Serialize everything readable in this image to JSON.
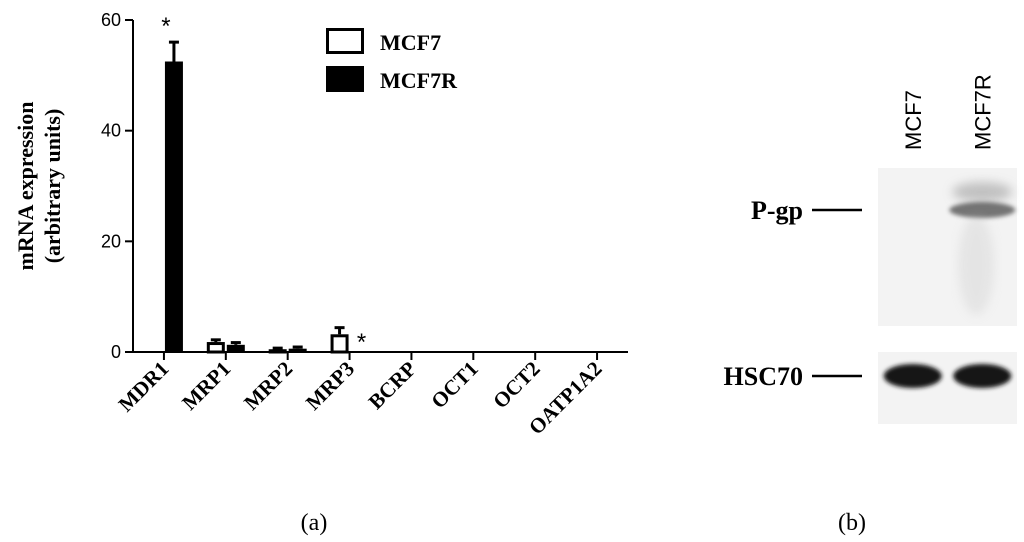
{
  "chart_data": [
    {
      "type": "bar",
      "panel_label": "(a)",
      "ylabel_lines": [
        "mRNA expression",
        "(arbitrary units)"
      ],
      "xlabel": "",
      "ylim": [
        0,
        60
      ],
      "yticks": [
        0,
        20,
        40,
        60
      ],
      "categories": [
        "MDR1",
        "MRP1",
        "MRP2",
        "MRP3",
        "BCRP",
        "OCT1",
        "OCT2",
        "OATP1A2"
      ],
      "series": [
        {
          "name": "MCF7",
          "style": "open",
          "values": [
            0,
            1.8,
            0.5,
            3.2,
            0,
            0,
            0,
            0
          ],
          "errors": [
            0,
            0.4,
            0.2,
            1.2,
            0,
            0,
            0,
            0
          ]
        },
        {
          "name": "MCF7R",
          "style": "filled",
          "values": [
            52.5,
            1.3,
            0.6,
            0,
            0,
            0,
            0,
            0
          ],
          "errors": [
            3.5,
            0.4,
            0.3,
            0,
            0,
            0,
            0,
            0
          ]
        }
      ],
      "annotations": [
        {
          "text": "*",
          "category": "MDR1"
        },
        {
          "text": "*",
          "category": "MRP3"
        }
      ],
      "legend_position": "top-right",
      "grid": false
    },
    {
      "type": "western-blot",
      "panel_label": "(b)",
      "lanes": [
        "MCF7",
        "MCF7R"
      ],
      "bands": [
        {
          "label": "P-gp",
          "lanes_present": [
            "MCF7R"
          ]
        },
        {
          "label": "HSC70",
          "lanes_present": [
            "MCF7",
            "MCF7R"
          ]
        }
      ]
    }
  ]
}
